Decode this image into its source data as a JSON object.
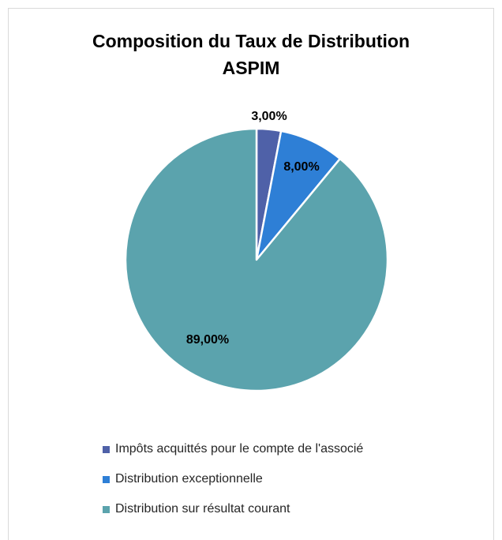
{
  "chart_data": {
    "type": "pie",
    "title": "Composition du Taux de Distribution",
    "subtitle": "ASPIM",
    "slices": [
      {
        "label": "Impôts acquittés pour le compte de l'associé",
        "value": 3.0,
        "data_label": "3,00%",
        "color": "#4f61a8"
      },
      {
        "label": "Distribution exceptionnelle",
        "value": 8.0,
        "data_label": "8,00%",
        "color": "#2e7fd6"
      },
      {
        "label": "Distribution sur résultat courant",
        "value": 89.0,
        "data_label": "89,00%",
        "color": "#5ba3ad"
      }
    ],
    "legend_position": "bottom"
  }
}
